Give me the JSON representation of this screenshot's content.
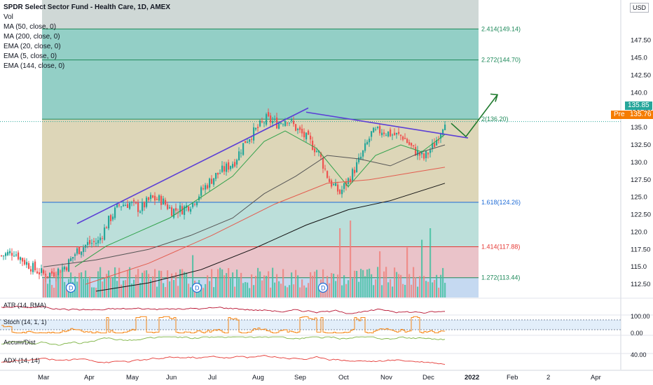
{
  "header": {
    "title": "SPDR Select Sector Fund - Health Care, 1D, AMEX",
    "indicators": [
      "Vol",
      "MA (50, close, 0)",
      "MA (200, close, 0)",
      "EMA (20, close, 0)",
      "EMA (5, close, 0)",
      "EMA (144, close, 0)"
    ]
  },
  "currency": {
    "top": "USD",
    "sub": "↑↓"
  },
  "colors": {
    "up": "#26a69a",
    "down": "#ef5350",
    "trendline": "#5b3fd6",
    "arrow": "#1f7a2e",
    "fib_green": "#6fbfb3",
    "fib_tan": "#d9d2b0",
    "fib_red": "#e6b8c0",
    "fib_blue": "#9fc0e8",
    "ema20": "#31a24c",
    "ma50": "#555555",
    "ma200": "#111111",
    "ema5": "#1e88e5",
    "ema144": "#e35d4f",
    "atr": "#b7102e",
    "stoch": "#f57c00",
    "accum": "#7cb342",
    "adx": "#e53935",
    "pre": "#f57c00"
  },
  "chart_data": {
    "type": "candlestick",
    "title": "SPDR Select Sector Fund - Health Care, 1D, AMEX",
    "ylim": [
      110.6,
      153.3
    ],
    "y_ticks": [
      147.5,
      145.0,
      142.5,
      140.0,
      137.5,
      135.0,
      132.5,
      130.0,
      127.5,
      125.0,
      122.5,
      120.0,
      117.5,
      115.0,
      112.5
    ],
    "x_ticks": [
      "Mar",
      "Apr",
      "May",
      "Jun",
      "Jul",
      "Aug",
      "Sep",
      "Oct",
      "Nov",
      "Dec",
      "2022",
      "Feb",
      "2",
      "Apr"
    ],
    "last_price": "135.85",
    "pre_market": {
      "label": "Pre",
      "price": "135.76"
    },
    "price_path": [
      [
        0,
        116.6
      ],
      [
        6,
        117.2
      ],
      [
        10,
        116.0
      ],
      [
        16,
        114.6
      ],
      [
        21,
        113.8
      ],
      [
        26,
        114.3
      ],
      [
        31,
        115.2
      ],
      [
        36,
        117.3
      ],
      [
        41,
        118.3
      ],
      [
        46,
        118.6
      ],
      [
        51,
        121.6
      ],
      [
        56,
        123.9
      ],
      [
        61,
        124.1
      ],
      [
        66,
        123.3
      ],
      [
        71,
        124.8
      ],
      [
        76,
        124.6
      ],
      [
        81,
        123.1
      ],
      [
        86,
        123.3
      ],
      [
        91,
        124.2
      ],
      [
        96,
        126.2
      ],
      [
        101,
        127.9
      ],
      [
        106,
        129.0
      ],
      [
        111,
        130.2
      ],
      [
        116,
        133.1
      ],
      [
        121,
        134.6
      ],
      [
        126,
        136.2
      ],
      [
        131,
        135.6
      ],
      [
        136,
        136.3
      ],
      [
        141,
        134.6
      ],
      [
        146,
        133.2
      ],
      [
        151,
        131.3
      ],
      [
        156,
        127.3
      ],
      [
        161,
        125.6
      ],
      [
        166,
        127.9
      ],
      [
        171,
        130.7
      ],
      [
        176,
        134.1
      ],
      [
        181,
        134.6
      ],
      [
        186,
        134.0
      ],
      [
        191,
        133.7
      ],
      [
        196,
        131.8
      ],
      [
        201,
        130.6
      ],
      [
        206,
        132.6
      ],
      [
        209,
        134.6
      ],
      [
        211,
        136.2
      ]
    ],
    "series": [
      {
        "name": "MA (50, close, 0)",
        "path": [
          [
            20,
            115.0
          ],
          [
            45,
            116.0
          ],
          [
            70,
            117.5
          ],
          [
            90,
            119.5
          ],
          [
            110,
            122.0
          ],
          [
            125,
            125.5
          ],
          [
            140,
            128.0
          ],
          [
            155,
            131.0
          ],
          [
            170,
            130.5
          ],
          [
            185,
            129.5
          ],
          [
            200,
            131.5
          ],
          [
            211,
            132.5
          ]
        ]
      },
      {
        "name": "MA (200, close, 0)",
        "path": [
          [
            45,
            111.5
          ],
          [
            70,
            112.7
          ],
          [
            95,
            114.6
          ],
          [
            120,
            117.6
          ],
          [
            145,
            121.0
          ],
          [
            165,
            123.2
          ],
          [
            185,
            124.5
          ],
          [
            211,
            127.0
          ]
        ]
      },
      {
        "name": "EMA (20, close, 0)",
        "path": [
          [
            35,
            115.0
          ],
          [
            50,
            118.0
          ],
          [
            65,
            120.0
          ],
          [
            80,
            122.0
          ],
          [
            95,
            125.0
          ],
          [
            110,
            128.0
          ],
          [
            125,
            133.0
          ],
          [
            135,
            134.5
          ],
          [
            150,
            132.0
          ],
          [
            165,
            126.5
          ],
          [
            178,
            131.0
          ],
          [
            190,
            132.5
          ],
          [
            200,
            131.5
          ],
          [
            211,
            134.0
          ]
        ]
      },
      {
        "name": "EMA (144, close, 0)",
        "path": [
          [
            40,
            112.5
          ],
          [
            70,
            115.5
          ],
          [
            100,
            119.5
          ],
          [
            130,
            124.0
          ],
          [
            155,
            127.0
          ],
          [
            175,
            127.5
          ],
          [
            195,
            128.5
          ],
          [
            211,
            129.3
          ]
        ]
      }
    ],
    "fibonacci": [
      {
        "label": "2.414(149.14)",
        "value": 149.14
      },
      {
        "label": "2.272(144.70)",
        "value": 144.7
      },
      {
        "label": "2(136.20)",
        "value": 136.2
      },
      {
        "label": "1.618(124.26)",
        "value": 124.26
      },
      {
        "label": "1.414(117.88)",
        "value": 117.88
      },
      {
        "label": "1.272(113.44)",
        "value": 113.44
      }
    ],
    "volume_spikes": [
      [
        91,
        0.55
      ],
      [
        161,
        0.9
      ],
      [
        166,
        1.0
      ],
      [
        180,
        0.6
      ],
      [
        193,
        0.65
      ],
      [
        200,
        0.75
      ],
      [
        204,
        0.9
      ]
    ],
    "dividend_markers": [
      {
        "label": "D",
        "index": 33
      },
      {
        "label": "D",
        "index": 93
      },
      {
        "label": "D",
        "index": 153
      }
    ],
    "trendlines": [
      {
        "from": [
          36,
          121.2
        ],
        "to": [
          146,
          137.8
        ]
      },
      {
        "from": [
          145,
          137.2
        ],
        "to": [
          222,
          133.5
        ]
      }
    ],
    "arrow": [
      [
        214,
        135.6
      ],
      [
        221,
        133.7
      ],
      [
        236,
        139.7
      ]
    ],
    "panes": [
      {
        "label": "ATR (14, RMA)",
        "levels": []
      },
      {
        "label": "Stoch (14, 1, 1)",
        "levels": [
          "100.00",
          "0.00"
        ]
      },
      {
        "label": "Accum/Dist",
        "levels": []
      },
      {
        "label": "ADX (14, 14)",
        "levels": [
          "40.00"
        ]
      }
    ]
  }
}
